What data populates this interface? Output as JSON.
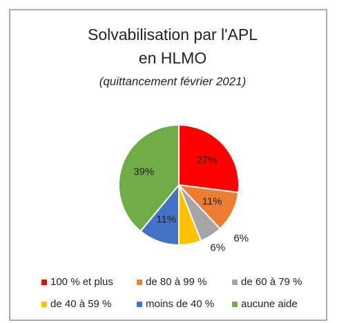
{
  "chart_data": {
    "type": "pie",
    "title": [
      "Solvabilisation par l'APL",
      "en HLMO"
    ],
    "subtitle": "(quittancement février 2021)",
    "categories": [
      "100 % et plus",
      "de 80 à 99 %",
      "de 60 à 79 %",
      "de 40 à 59 %",
      "moins de 40 %",
      "aucune aide"
    ],
    "values": [
      27,
      11,
      6,
      6,
      11,
      39
    ],
    "value_labels": [
      "27%",
      "11%",
      "6%",
      "6%",
      "11%",
      "39%"
    ],
    "colors": [
      "#ff0000",
      "#ed7d31",
      "#a5a5a5",
      "#ffc000",
      "#4472c4",
      "#70ad47"
    ],
    "legend": "bottom"
  }
}
